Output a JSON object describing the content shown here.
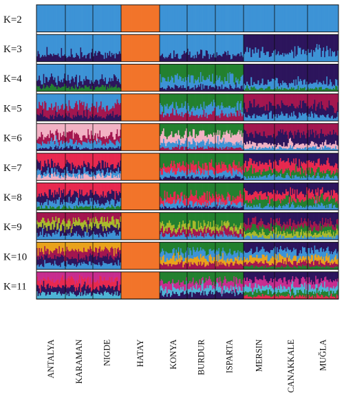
{
  "panels": [
    {
      "label": "K=2",
      "k": 2
    },
    {
      "label": "K=3",
      "k": 3
    },
    {
      "label": "K=4",
      "k": 4
    },
    {
      "label": "K=5",
      "k": 5
    },
    {
      "label": "K=6",
      "k": 6
    },
    {
      "label": "K=7",
      "k": 7
    },
    {
      "label": "K=8",
      "k": 8
    },
    {
      "label": "K=9",
      "k": 9
    },
    {
      "label": "K=10",
      "k": 10
    },
    {
      "label": "K=11",
      "k": 11
    }
  ],
  "populations": [
    {
      "name": "ANTALYA",
      "n": 26
    },
    {
      "name": "KARAMAN",
      "n": 26
    },
    {
      "name": "NIGDE",
      "n": 26
    },
    {
      "name": "HATAY",
      "n": 36
    },
    {
      "name": "KONYA",
      "n": 24
    },
    {
      "name": "BURDUR",
      "n": 26
    },
    {
      "name": "ISPARTA",
      "n": 28
    },
    {
      "name": "MERSIN",
      "n": 22
    },
    {
      "name": "CANAKKALE",
      "n": 30
    },
    {
      "name": "MUĞLA",
      "n": 28
    }
  ],
  "cluster_colors": {
    "light_blue": "#3d93d6",
    "orange": "#f2742a",
    "dark_purple": "#2c155c",
    "green": "#23802f",
    "crimson": "#a3164f",
    "pink": "#f2b2c4",
    "red_pink": "#e8294f",
    "yellow_green": "#a9b92c",
    "gold": "#e9a21c",
    "magenta": "#c72d8f",
    "cyan": "#4fb5d6"
  }
}
